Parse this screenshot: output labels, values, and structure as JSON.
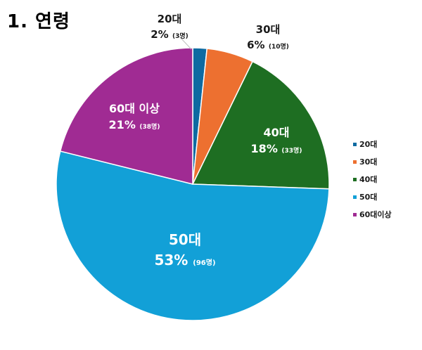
{
  "title": "1. 연령",
  "chart_data": {
    "type": "pie",
    "slices": [
      {
        "name": "20대",
        "legend": "20대",
        "percent_label": "2%",
        "count_label": "(3명)",
        "value": 3,
        "color": "#0e6aa1",
        "label_color": "dark"
      },
      {
        "name": "30대",
        "legend": "30대",
        "percent_label": "6%",
        "count_label": "(10명)",
        "value": 10,
        "color": "#ed7030",
        "label_color": "dark"
      },
      {
        "name": "40대",
        "legend": "40대",
        "percent_label": "18%",
        "count_label": "(33명)",
        "value": 33,
        "color": "#1e6e22",
        "label_color": "light"
      },
      {
        "name": "50대",
        "legend": "50대",
        "percent_label": "53%",
        "count_label": "(96명)",
        "value": 96,
        "color": "#12a0d7",
        "label_color": "light"
      },
      {
        "name": "60대 이상",
        "legend": "60대이상",
        "percent_label": "21%",
        "count_label": "(38명)",
        "value": 38,
        "color": "#a02b93",
        "label_color": "light"
      }
    ],
    "legend_position": "right"
  }
}
